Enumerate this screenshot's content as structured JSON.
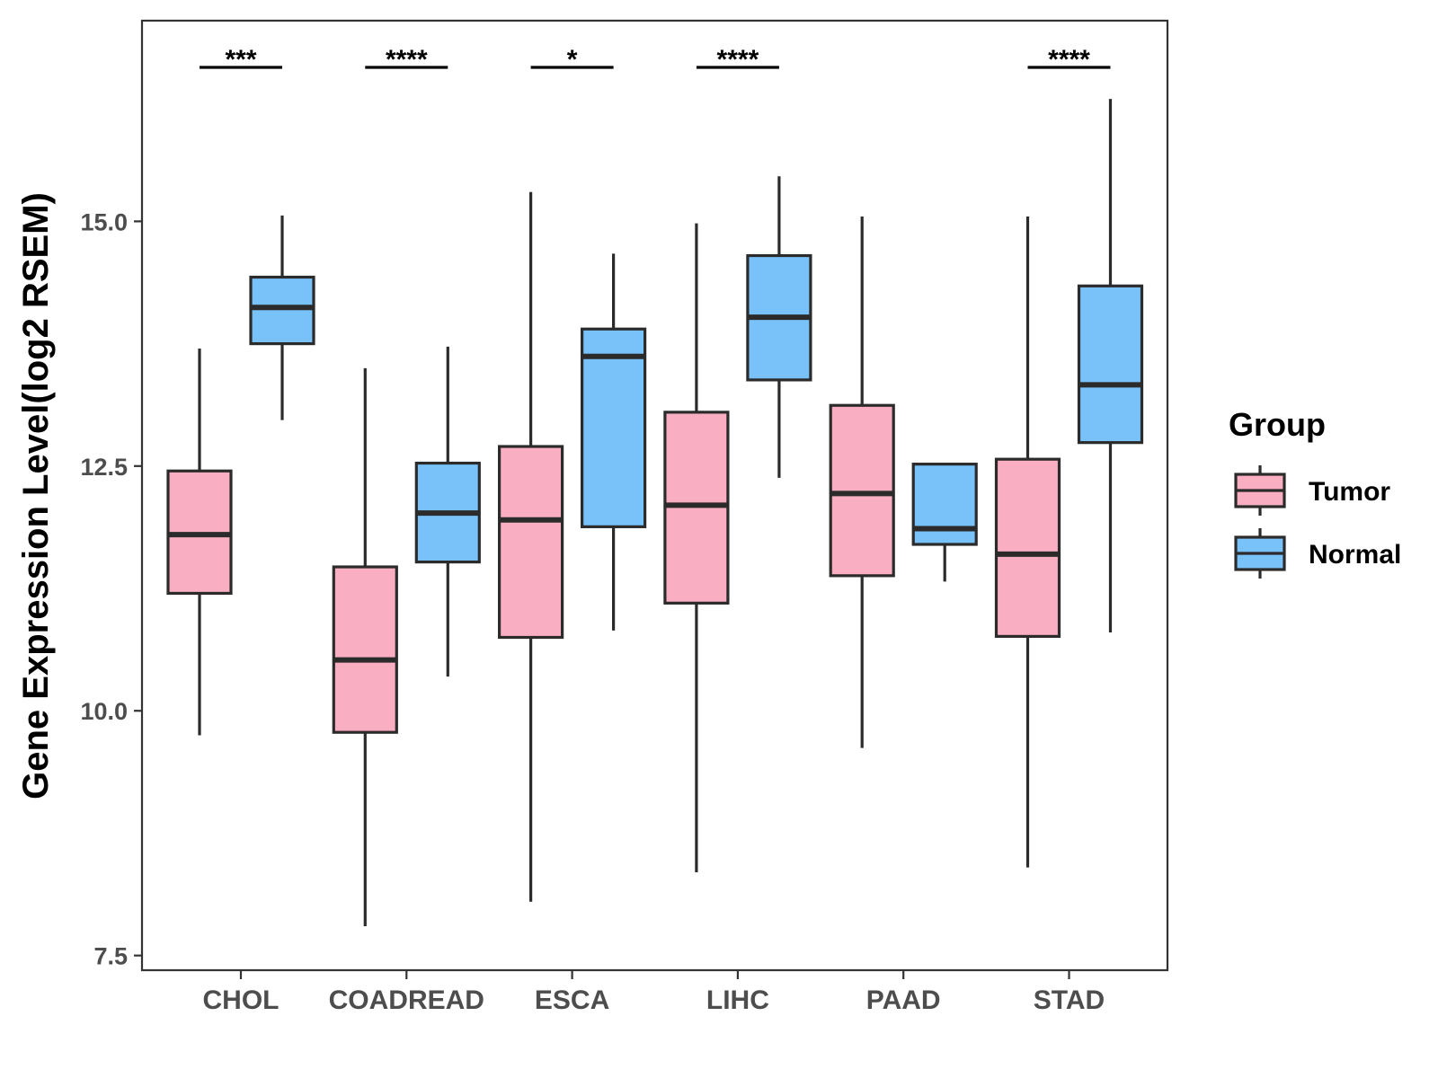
{
  "chart_data": {
    "type": "boxplot",
    "ylabel": "Gene Expression Level(log2 RSEM)",
    "xlabel": "",
    "ylim": [
      7.35,
      17.05
    ],
    "yticks": [
      7.5,
      10.0,
      12.5,
      15.0
    ],
    "ytick_labels": [
      "7.5",
      "10.0",
      "12.5",
      "15.0"
    ],
    "categories": [
      "CHOL",
      "COADREAD",
      "ESCA",
      "LIHC",
      "PAAD",
      "STAD"
    ],
    "legend": {
      "title": "Group",
      "position": "right",
      "entries": [
        {
          "name": "Tumor",
          "color": "#F9AFC1"
        },
        {
          "name": "Normal",
          "color": "#78C1F9"
        }
      ]
    },
    "series": [
      {
        "name": "Tumor",
        "color": "#F9AFC1",
        "boxes": [
          {
            "min": 9.75,
            "q1": 11.2,
            "median": 11.8,
            "q3": 12.45,
            "max": 13.7
          },
          {
            "min": 7.8,
            "q1": 9.78,
            "median": 10.52,
            "q3": 11.47,
            "max": 13.5
          },
          {
            "min": 8.05,
            "q1": 10.75,
            "median": 11.95,
            "q3": 12.7,
            "max": 15.3
          },
          {
            "min": 8.35,
            "q1": 11.1,
            "median": 12.1,
            "q3": 13.05,
            "max": 14.98
          },
          {
            "min": 9.62,
            "q1": 11.38,
            "median": 12.22,
            "q3": 13.12,
            "max": 15.05
          },
          {
            "min": 8.4,
            "q1": 10.76,
            "median": 11.6,
            "q3": 12.57,
            "max": 15.05
          }
        ]
      },
      {
        "name": "Normal",
        "color": "#78C1F9",
        "boxes": [
          {
            "min": 12.97,
            "q1": 13.75,
            "median": 14.12,
            "q3": 14.43,
            "max": 15.06
          },
          {
            "min": 10.35,
            "q1": 11.52,
            "median": 12.02,
            "q3": 12.53,
            "max": 13.72
          },
          {
            "min": 10.82,
            "q1": 11.88,
            "median": 13.62,
            "q3": 13.9,
            "max": 14.67
          },
          {
            "min": 12.38,
            "q1": 13.38,
            "median": 14.02,
            "q3": 14.65,
            "max": 15.46
          },
          {
            "min": 11.32,
            "q1": 11.7,
            "median": 11.86,
            "q3": 12.52,
            "max": 12.52
          },
          {
            "min": 10.8,
            "q1": 12.74,
            "median": 13.33,
            "q3": 14.34,
            "max": 16.25
          }
        ]
      }
    ],
    "significance": [
      "***",
      "****",
      "*",
      "****",
      "",
      "****"
    ]
  }
}
